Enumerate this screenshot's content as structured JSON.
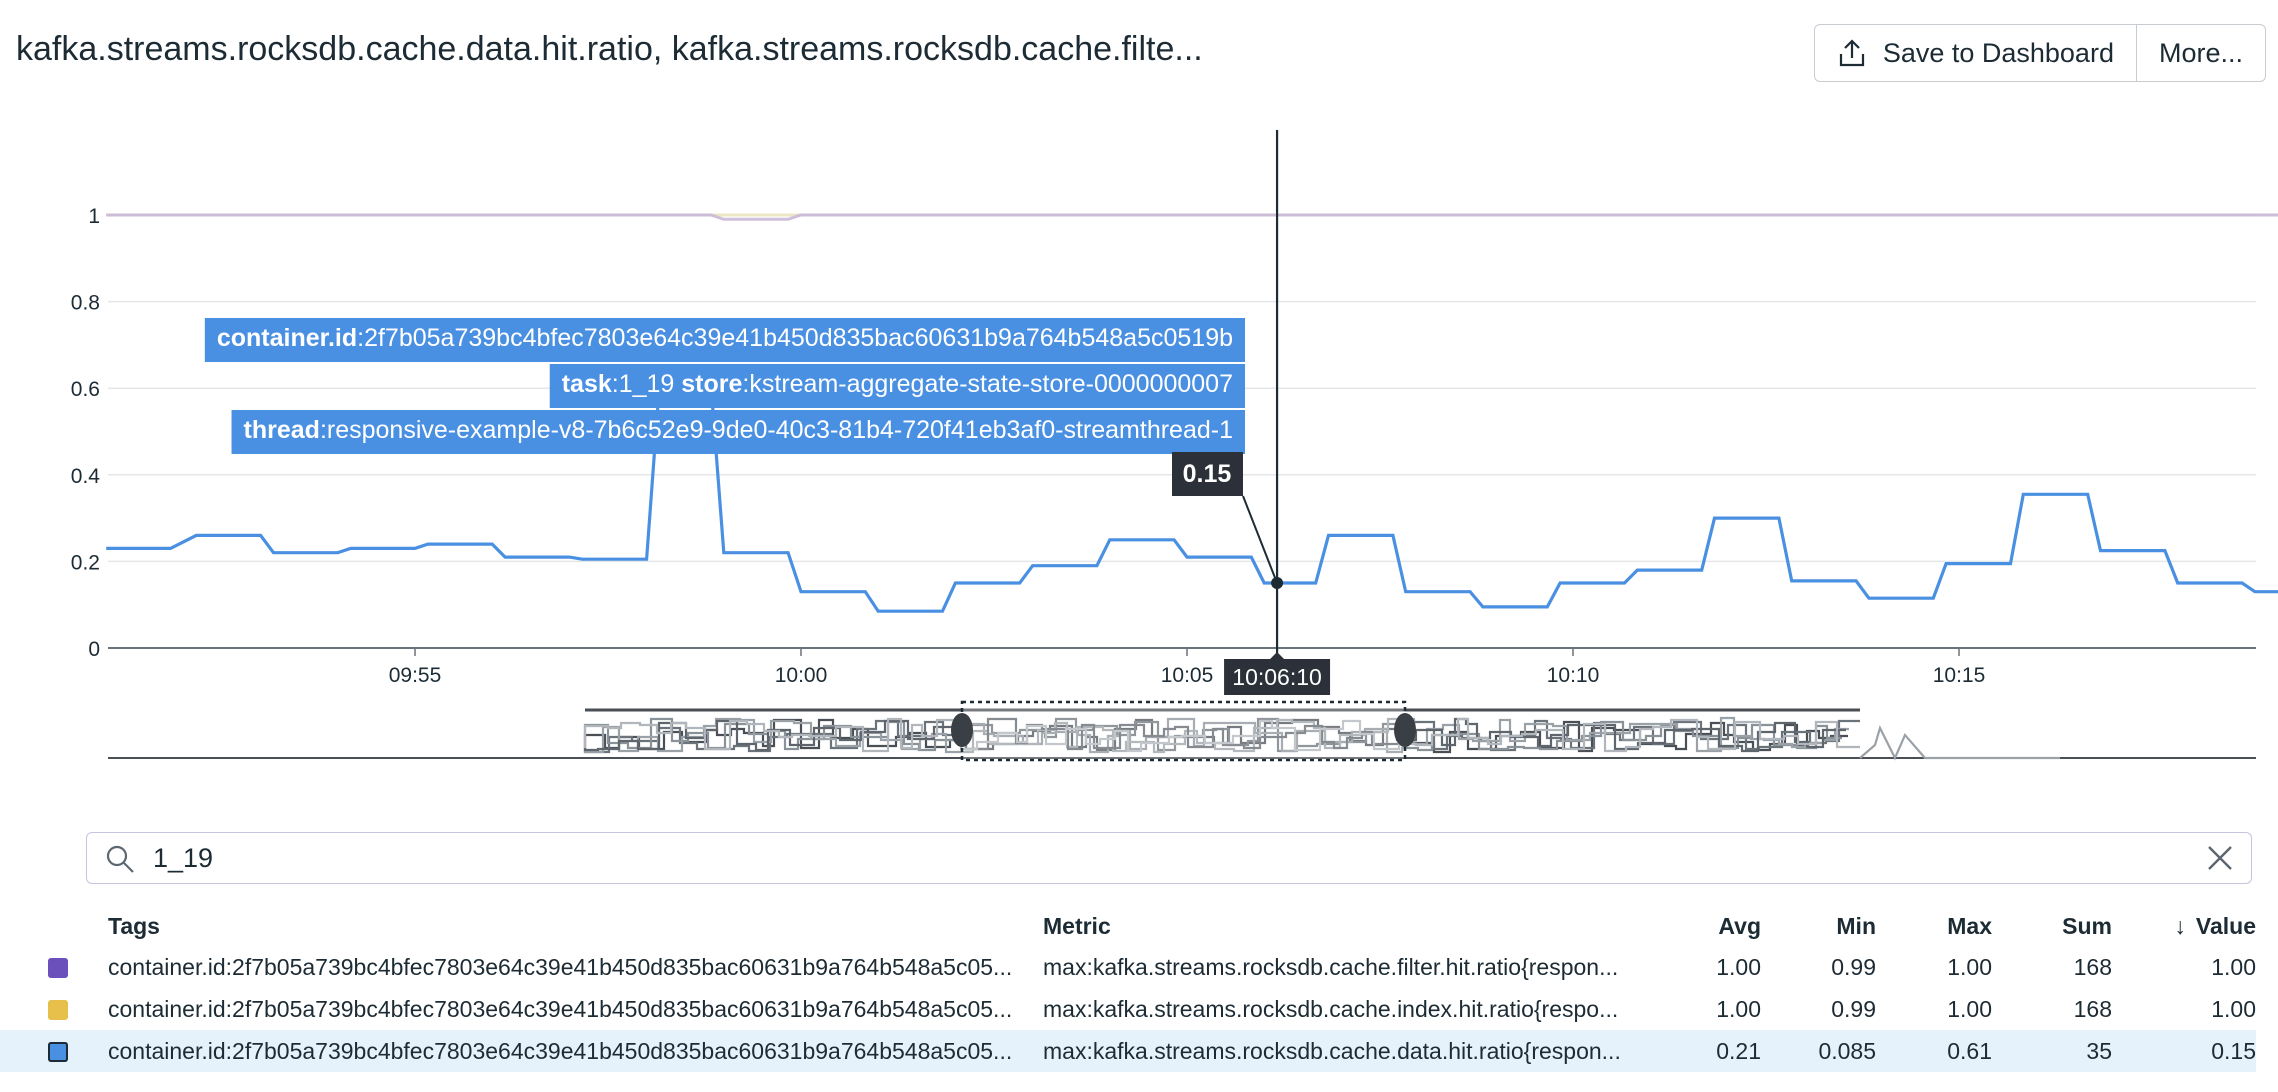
{
  "header": {
    "title": "kafka.streams.rocksdb.cache.data.hit.ratio, kafka.streams.rocksdb.cache.filte...",
    "save_label": "Save to Dashboard",
    "more_label": "More..."
  },
  "chart_data": {
    "type": "line",
    "x_ticks": [
      "09:55",
      "10:00",
      "10:05",
      "10:10",
      "10:15"
    ],
    "y_ticks": [
      "0",
      "0.2",
      "0.4",
      "0.6",
      "0.8",
      "1"
    ],
    "ylim": [
      0,
      1.08
    ],
    "grid": true,
    "series": [
      {
        "name": "max:kafka.streams.rocksdb.cache.data.hit.ratio{respon...",
        "color": "#4a90e2",
        "x": [
          "09:51:00",
          "09:51:50",
          "09:52:10",
          "09:53:00",
          "09:53:10",
          "09:54:00",
          "09:54:10",
          "09:55:00",
          "09:55:10",
          "09:56:00",
          "09:56:10",
          "09:57:00",
          "09:57:10",
          "09:58:00",
          "09:58:10",
          "09:58:20",
          "09:58:50",
          "09:59:00",
          "09:59:50",
          "10:00:00",
          "10:00:50",
          "10:01:00",
          "10:01:50",
          "10:02:00",
          "10:02:50",
          "10:03:00",
          "10:03:50",
          "10:04:00",
          "10:04:50",
          "10:05:00",
          "10:05:50",
          "10:06:00",
          "10:06:10",
          "10:06:40",
          "10:06:50",
          "10:07:40",
          "10:07:50",
          "10:08:40",
          "10:08:50",
          "10:09:40",
          "10:09:50",
          "10:10:40",
          "10:10:50",
          "10:11:40",
          "10:11:50",
          "10:12:40",
          "10:12:50",
          "10:13:40",
          "10:13:50",
          "10:14:40",
          "10:14:50",
          "10:15:40",
          "10:15:50",
          "10:16:40",
          "10:16:50",
          "10:17:40",
          "10:17:50",
          "10:18:40",
          "10:18:50",
          "10:19:40",
          "10:19:50"
        ],
        "values": [
          0.23,
          0.23,
          0.26,
          0.26,
          0.22,
          0.22,
          0.23,
          0.23,
          0.24,
          0.24,
          0.21,
          0.21,
          0.205,
          0.205,
          0.61,
          0.61,
          0.61,
          0.22,
          0.22,
          0.13,
          0.13,
          0.085,
          0.085,
          0.15,
          0.15,
          0.19,
          0.19,
          0.25,
          0.25,
          0.21,
          0.21,
          0.15,
          0.15,
          0.15,
          0.26,
          0.26,
          0.13,
          0.13,
          0.095,
          0.095,
          0.15,
          0.15,
          0.18,
          0.18,
          0.3,
          0.3,
          0.155,
          0.155,
          0.115,
          0.115,
          0.195,
          0.195,
          0.355,
          0.355,
          0.225,
          0.225,
          0.15,
          0.15,
          0.13,
          0.13,
          0.13
        ]
      },
      {
        "name": "max:kafka.streams.rocksdb.cache.filter.hit.ratio{respon...",
        "color": "#6b4fbb",
        "x": [
          "09:51:00",
          "09:58:50",
          "09:59:00",
          "09:59:50",
          "10:00:00",
          "10:19:50"
        ],
        "values": [
          1.0,
          1.0,
          0.99,
          0.99,
          1.0,
          1.0
        ]
      },
      {
        "name": "max:kafka.streams.rocksdb.cache.index.hit.ratio{respo...",
        "color": "#e6c04a",
        "x": [
          "09:51:00",
          "10:19:50"
        ],
        "values": [
          1.0,
          1.0
        ]
      }
    ]
  },
  "tooltip": {
    "container_key": "container.id",
    "container_val": ":2f7b05a739bc4bfec7803e64c39e41b450d835bac60631b9a764b548a5c0519b",
    "task_key": "task",
    "task_val": ":1_19",
    "store_key": "store",
    "store_val": ":kstream-aggregate-state-store-0000000007",
    "thread_key": "thread",
    "thread_val": ":responsive-example-v8-7b6c52e9-9de0-40c3-81b4-720f41eb3af0-streamthread-1",
    "value": "0.15",
    "time": "10:06:10"
  },
  "search": {
    "value": "1_19"
  },
  "legend": {
    "headers": {
      "tags": "Tags",
      "metric": "Metric",
      "avg": "Avg",
      "min": "Min",
      "max": "Max",
      "sum": "Sum",
      "value": "Value"
    },
    "rows": [
      {
        "color": "#6b4fbb",
        "tags": "container.id:2f7b05a739bc4bfec7803e64c39e41b450d835bac60631b9a764b548a5c05...",
        "metric": "max:kafka.streams.rocksdb.cache.filter.hit.ratio{respon...",
        "avg": "1.00",
        "min": "0.99",
        "max": "1.00",
        "sum": "168",
        "value": "1.00"
      },
      {
        "color": "#e6c04a",
        "tags": "container.id:2f7b05a739bc4bfec7803e64c39e41b450d835bac60631b9a764b548a5c05...",
        "metric": "max:kafka.streams.rocksdb.cache.index.hit.ratio{respo...",
        "avg": "1.00",
        "min": "0.99",
        "max": "1.00",
        "sum": "168",
        "value": "1.00"
      },
      {
        "color": "#4a90e2",
        "tags": "container.id:2f7b05a739bc4bfec7803e64c39e41b450d835bac60631b9a764b548a5c05...",
        "metric": "max:kafka.streams.rocksdb.cache.data.hit.ratio{respon...",
        "avg": "0.21",
        "min": "0.085",
        "max": "0.61",
        "sum": "35",
        "value": "0.15"
      }
    ]
  }
}
